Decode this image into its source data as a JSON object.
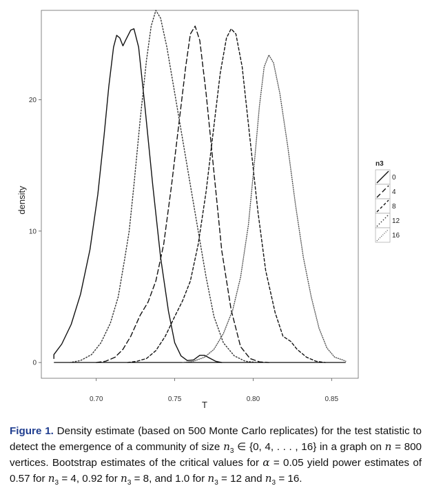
{
  "chart_data": {
    "type": "line",
    "xlabel": "T",
    "ylabel": "density",
    "xlim": [
      0.665,
      0.867
    ],
    "ylim": [
      -1.2,
      26.8
    ],
    "xticks": [
      0.7,
      0.75,
      0.8,
      0.85
    ],
    "xtick_labels": [
      "0.70",
      "0.75",
      "0.80",
      "0.85"
    ],
    "yticks": [
      0,
      10,
      20
    ],
    "ytick_labels": [
      "0",
      "10",
      "20"
    ],
    "grid": false,
    "legend_position": "right",
    "legend_title": "n3",
    "series": [
      {
        "name": "0",
        "dash": "solid",
        "color": "#111111",
        "points": [
          [
            0.673,
            0.3
          ],
          [
            0.673,
            0.6
          ],
          [
            0.678,
            1.4
          ],
          [
            0.684,
            2.9
          ],
          [
            0.69,
            5.2
          ],
          [
            0.696,
            8.6
          ],
          [
            0.701,
            12.8
          ],
          [
            0.705,
            17.3
          ],
          [
            0.708,
            21.0
          ],
          [
            0.711,
            24.0
          ],
          [
            0.713,
            24.9
          ],
          [
            0.715,
            24.7
          ],
          [
            0.717,
            24.1
          ],
          [
            0.719,
            24.6
          ],
          [
            0.722,
            25.3
          ],
          [
            0.724,
            25.4
          ],
          [
            0.727,
            24.0
          ],
          [
            0.731,
            19.5
          ],
          [
            0.736,
            13.5
          ],
          [
            0.741,
            8.0
          ],
          [
            0.746,
            3.9
          ],
          [
            0.75,
            1.5
          ],
          [
            0.754,
            0.5
          ],
          [
            0.758,
            0.15
          ],
          [
            0.762,
            0.2
          ],
          [
            0.766,
            0.55
          ],
          [
            0.769,
            0.55
          ],
          [
            0.772,
            0.35
          ],
          [
            0.776,
            0.1
          ],
          [
            0.78,
            0.0
          ]
        ]
      },
      {
        "name": "4",
        "dash": "long",
        "color": "#111111",
        "points": [
          [
            0.7,
            0.0
          ],
          [
            0.706,
            0.1
          ],
          [
            0.712,
            0.4
          ],
          [
            0.717,
            1.0
          ],
          [
            0.722,
            2.0
          ],
          [
            0.728,
            3.6
          ],
          [
            0.733,
            4.6
          ],
          [
            0.738,
            6.2
          ],
          [
            0.743,
            9.0
          ],
          [
            0.748,
            13.5
          ],
          [
            0.753,
            18.5
          ],
          [
            0.757,
            22.5
          ],
          [
            0.76,
            25.0
          ],
          [
            0.763,
            25.6
          ],
          [
            0.766,
            24.5
          ],
          [
            0.77,
            20.5
          ],
          [
            0.775,
            14.5
          ],
          [
            0.78,
            8.5
          ],
          [
            0.786,
            4.0
          ],
          [
            0.792,
            1.2
          ],
          [
            0.798,
            0.3
          ],
          [
            0.804,
            0.05
          ],
          [
            0.81,
            0.0
          ]
        ]
      },
      {
        "name": "8",
        "dash": "medium",
        "color": "#111111",
        "points": [
          [
            0.72,
            0.0
          ],
          [
            0.726,
            0.1
          ],
          [
            0.732,
            0.3
          ],
          [
            0.738,
            0.9
          ],
          [
            0.744,
            2.0
          ],
          [
            0.75,
            3.5
          ],
          [
            0.755,
            4.7
          ],
          [
            0.76,
            6.2
          ],
          [
            0.765,
            9.0
          ],
          [
            0.77,
            13.0
          ],
          [
            0.775,
            18.0
          ],
          [
            0.779,
            22.0
          ],
          [
            0.783,
            24.7
          ],
          [
            0.786,
            25.4
          ],
          [
            0.789,
            25.0
          ],
          [
            0.793,
            22.5
          ],
          [
            0.798,
            17.0
          ],
          [
            0.803,
            11.5
          ],
          [
            0.808,
            7.0
          ],
          [
            0.814,
            3.8
          ],
          [
            0.819,
            2.0
          ],
          [
            0.824,
            1.6
          ],
          [
            0.828,
            1.0
          ],
          [
            0.834,
            0.4
          ],
          [
            0.84,
            0.1
          ],
          [
            0.846,
            0.0
          ]
        ]
      },
      {
        "name": "12",
        "dash": "dotted",
        "color": "#333333",
        "points": [
          [
            0.683,
            0.0
          ],
          [
            0.69,
            0.15
          ],
          [
            0.697,
            0.6
          ],
          [
            0.703,
            1.5
          ],
          [
            0.709,
            3.0
          ],
          [
            0.714,
            5.0
          ],
          [
            0.718,
            7.8
          ],
          [
            0.721,
            10.0
          ],
          [
            0.724,
            13.5
          ],
          [
            0.728,
            18.5
          ],
          [
            0.732,
            23.0
          ],
          [
            0.735,
            25.6
          ],
          [
            0.738,
            26.8
          ],
          [
            0.741,
            26.2
          ],
          [
            0.745,
            24.0
          ],
          [
            0.75,
            20.5
          ],
          [
            0.755,
            17.0
          ],
          [
            0.76,
            13.5
          ],
          [
            0.765,
            10.0
          ],
          [
            0.77,
            6.5
          ],
          [
            0.775,
            3.5
          ],
          [
            0.781,
            1.5
          ],
          [
            0.788,
            0.5
          ],
          [
            0.795,
            0.1
          ],
          [
            0.803,
            0.0
          ]
        ]
      },
      {
        "name": "16",
        "dash": "fine-dot",
        "color": "#555555",
        "points": [
          [
            0.755,
            0.0
          ],
          [
            0.762,
            0.1
          ],
          [
            0.769,
            0.4
          ],
          [
            0.775,
            1.0
          ],
          [
            0.781,
            2.2
          ],
          [
            0.787,
            4.0
          ],
          [
            0.792,
            6.5
          ],
          [
            0.797,
            10.5
          ],
          [
            0.801,
            15.5
          ],
          [
            0.804,
            19.5
          ],
          [
            0.807,
            22.5
          ],
          [
            0.81,
            23.4
          ],
          [
            0.813,
            22.8
          ],
          [
            0.817,
            20.5
          ],
          [
            0.822,
            16.5
          ],
          [
            0.827,
            12.0
          ],
          [
            0.832,
            8.0
          ],
          [
            0.837,
            5.0
          ],
          [
            0.842,
            2.6
          ],
          [
            0.847,
            1.1
          ],
          [
            0.852,
            0.4
          ],
          [
            0.857,
            0.2
          ],
          [
            0.859,
            0.1
          ]
        ]
      }
    ]
  },
  "caption": {
    "label": "Figure 1.",
    "t1": " Density estimate (based on 500 Monte Carlo replicates) for the test statistic to detect the emergence of a community of size ",
    "t2": " ∈ {0, 4, . . . , 16} in a graph on ",
    "t3": " = 800 vertices. Bootstrap estimates of the critical values for ",
    "t4": " = 0.05 yield power estimates of 0.57 for ",
    "t5": " = 4, 0.92 for ",
    "t6": " = 8, and 1.0 for ",
    "t7": " = 12 and ",
    "t8": " = 16.",
    "var_n": "n",
    "sub_3": "3",
    "var_alpha": "α"
  }
}
